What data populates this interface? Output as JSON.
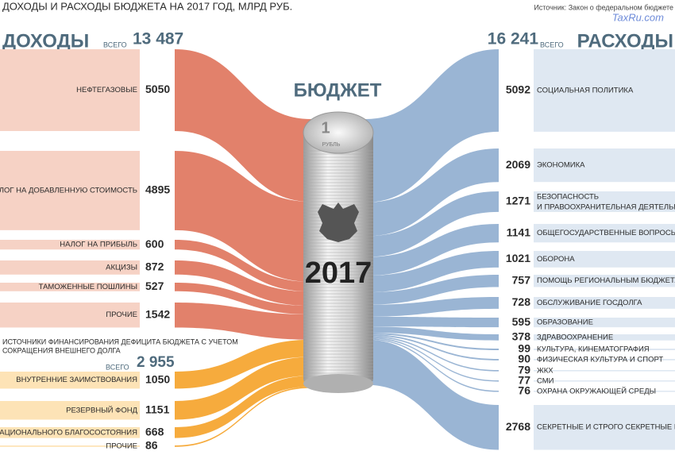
{
  "title": "ДОХОДЫ И РАСХОДЫ БЮДЖЕТА НА 2017 ГОД, МЛРД РУБ.",
  "source": "Источник: Закон о федеральном бюджете",
  "watermark": "TaxRu.com",
  "center": {
    "title": "БЮДЖЕТ",
    "coin_value": "1",
    "coin_unit": "РУБЛЬ",
    "year": "2017"
  },
  "income": {
    "heading": "ДОХОДЫ",
    "total_label": "ВСЕГО",
    "total": "13 487",
    "items": [
      {
        "label": "НЕФТЕГАЗОВЫЕ",
        "value": 5050
      },
      {
        "label": "НАЛОГ НА ДОБАВЛЕННУЮ СТОИМОСТЬ",
        "value": 4895
      },
      {
        "label": "НАЛОГ НА ПРИБЫЛЬ",
        "value": 600
      },
      {
        "label": "АКЦИЗЫ",
        "value": 872
      },
      {
        "label": "ТАМОЖЕННЫЕ ПОШЛИНЫ",
        "value": 527
      },
      {
        "label": "ПРОЧИЕ",
        "value": 1542
      }
    ]
  },
  "deficit": {
    "heading_lines": [
      "ИСТОЧНИКИ ФИНАНСИРОВАНИЯ ДЕФИЦИТА БЮДЖЕТА С УЧЕТОМ",
      "СОКРАЩЕНИЯ ВНЕШНЕГО ДОЛГА"
    ],
    "total_label": "ВСЕГО",
    "total": "2 955",
    "items": [
      {
        "label": "ВНУТРЕННИЕ ЗАИМСТВОВАНИЯ",
        "value": 1050
      },
      {
        "label": "РЕЗЕРВНЫЙ ФОНД",
        "value": 1151
      },
      {
        "label": "ФОНД НАЦИОНАЛЬНОГО БЛАГОСОСТОЯНИЯ",
        "value": 668
      },
      {
        "label": "ПРОЧИЕ",
        "value": 86
      }
    ]
  },
  "expenses": {
    "heading": "РАСХОДЫ",
    "total_label": "ВСЕГО",
    "total": "16 241",
    "items": [
      {
        "label": "СОЦИАЛЬНАЯ ПОЛИТИКА",
        "value": 5092
      },
      {
        "label": "ЭКОНОМИКА",
        "value": 2069
      },
      {
        "label_lines": [
          "БЕЗОПАСНОСТЬ",
          "И ПРАВООХРАНИТЕЛЬНАЯ ДЕЯТЕЛЬНОСТЬ"
        ],
        "value": 1271
      },
      {
        "label": "ОБЩЕГОСУДАРСТВЕННЫЕ ВОПРОСЫ",
        "value": 1141
      },
      {
        "label": "ОБОРОНА",
        "value": 1021
      },
      {
        "label": "ПОМОЩЬ РЕГИОНАЛЬНЫМ БЮДЖЕТАМ",
        "value": 757
      },
      {
        "label": "ОБСЛУЖИВАНИЕ ГОСДОЛГА",
        "value": 728
      },
      {
        "label": "ОБРАЗОВАНИЕ",
        "value": 595
      },
      {
        "label": "ЗДРАВООХРАНЕНИЕ",
        "value": 378
      },
      {
        "label": "КУЛЬТУРА, КИНЕМАТОГРАФИЯ",
        "value": 99
      },
      {
        "label": "ФИЗИЧЕСКАЯ КУЛЬТУРА И СПОРТ",
        "value": 90
      },
      {
        "label": "ЖКХ",
        "value": 79
      },
      {
        "label": "СМИ",
        "value": 77
      },
      {
        "label": "ОХРАНА ОКРУЖАЮЩЕЙ СРЕДЫ",
        "value": 76
      },
      {
        "label": "СЕКРЕТНЫЕ И СТРОГО СЕКРЕТНЫЕ РАСХОДЫ",
        "value": 2768
      }
    ]
  }
}
